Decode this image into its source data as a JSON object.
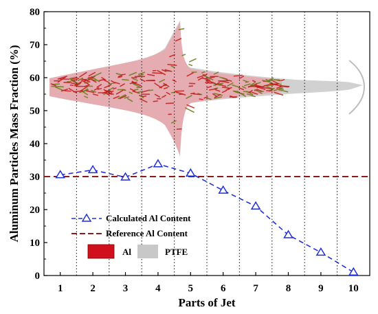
{
  "chart_data": {
    "type": "line",
    "xlabel": "Parts of Jet",
    "ylabel": "Aluminum Particles Mass Fraction (%)",
    "x": [
      1,
      2,
      3,
      4,
      5,
      6,
      7,
      8,
      9,
      10
    ],
    "xlim": [
      0.5,
      10.5
    ],
    "ylim": [
      0,
      80
    ],
    "yticks": [
      0,
      10,
      20,
      30,
      40,
      50,
      60,
      70,
      80
    ],
    "xticks": [
      1,
      2,
      3,
      4,
      5,
      6,
      7,
      8,
      9,
      10
    ],
    "part_boundaries": [
      1.5,
      2.5,
      3.5,
      4.5,
      5.5,
      6.5,
      7.5,
      8.5,
      9.5
    ],
    "series": [
      {
        "name": "Calculated Al Content",
        "style": "dashed line with open triangle markers",
        "color": "#1f2fd6",
        "values": [
          30.5,
          32,
          29.8,
          33.8,
          31,
          25.8,
          21,
          12.3,
          7,
          1
        ]
      },
      {
        "name": "Reference Al Content",
        "style": "dashed line",
        "color": "#8b1a1a",
        "values": [
          30,
          30,
          30,
          30,
          30,
          30,
          30,
          30,
          30,
          30
        ]
      }
    ],
    "inset_legend": [
      {
        "label": "Al",
        "color": "#d0101c"
      },
      {
        "label": "PTFE",
        "color": "#c8c8c8"
      }
    ],
    "grid": "vertical dotted lines between parts"
  }
}
